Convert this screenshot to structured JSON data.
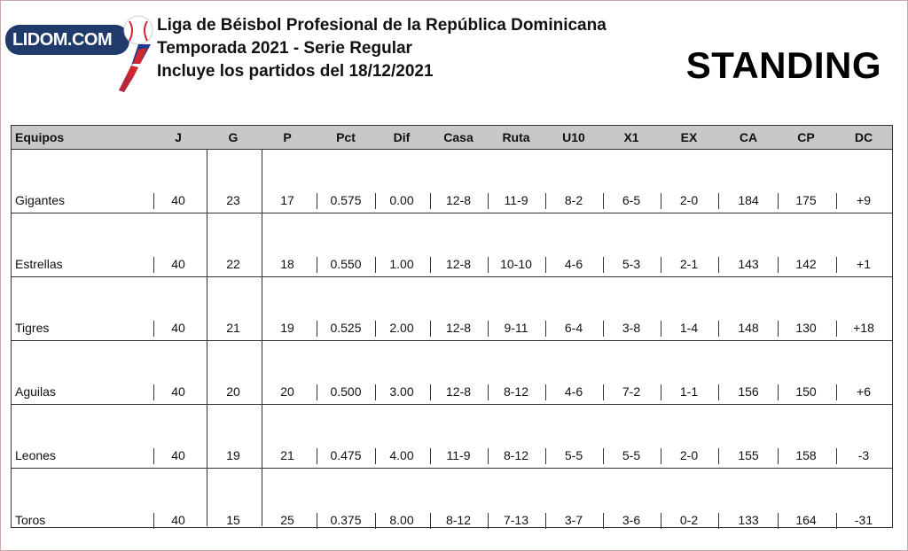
{
  "header": {
    "logo_text": "LIDOM.COM",
    "line1": "Liga de Béisbol Profesional de la República Dominicana",
    "line2": "Temporada 2021 - Serie Regular",
    "line3": "Incluye los partidos del 18/12/2021",
    "title": "STANDING"
  },
  "columns": [
    "Equipos",
    "J",
    "G",
    "P",
    "Pct",
    "Dif",
    "Casa",
    "Ruta",
    "U10",
    "X1",
    "EX",
    "CA",
    "CP",
    "DC"
  ],
  "rows": [
    [
      "Gigantes",
      "40",
      "23",
      "17",
      "0.575",
      "0.00",
      "12-8",
      "11-9",
      "8-2",
      "6-5",
      "2-0",
      "184",
      "175",
      "+9"
    ],
    [
      "Estrellas",
      "40",
      "22",
      "18",
      "0.550",
      "1.00",
      "12-8",
      "10-10",
      "4-6",
      "5-3",
      "2-1",
      "143",
      "142",
      "+1"
    ],
    [
      "Tigres",
      "40",
      "21",
      "19",
      "0.525",
      "2.00",
      "12-8",
      "9-11",
      "6-4",
      "3-8",
      "1-4",
      "148",
      "130",
      "+18"
    ],
    [
      "Aguilas",
      "40",
      "20",
      "20",
      "0.500",
      "3.00",
      "12-8",
      "8-12",
      "4-6",
      "7-2",
      "1-1",
      "156",
      "150",
      "+6"
    ],
    [
      "Leones",
      "40",
      "19",
      "21",
      "0.475",
      "4.00",
      "11-9",
      "8-12",
      "5-5",
      "5-5",
      "2-0",
      "155",
      "158",
      "-3"
    ],
    [
      "Toros",
      "40",
      "15",
      "25",
      "0.375",
      "8.00",
      "8-12",
      "7-13",
      "3-7",
      "3-6",
      "0-2",
      "133",
      "164",
      "-31"
    ]
  ],
  "colors": {
    "header_bg": "#c8c8c8",
    "logo_bg": "#1f3a6b",
    "flag_red": "#d0262f",
    "flag_blue": "#1f3a8c"
  }
}
